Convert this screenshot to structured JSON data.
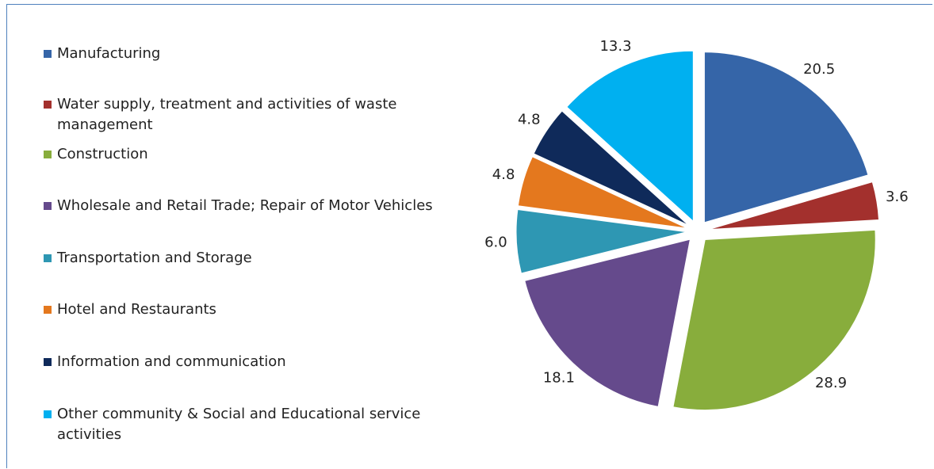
{
  "chart_data": {
    "type": "pie",
    "categories": [
      "Manufacturing",
      "Water supply, treatment and activities of waste management",
      "Construction",
      "Wholesale and Retail Trade; Repair of Motor Vehicles",
      "Transportation and Storage",
      "Hotel and Restaurants",
      "Information and communication",
      "Other community & Social and Educational service activities"
    ],
    "values": [
      20.5,
      3.6,
      28.9,
      18.1,
      6.0,
      4.8,
      4.8,
      13.3
    ],
    "value_labels": [
      "20.5",
      "3.6",
      "28.9",
      "18.1",
      "6.0",
      "4.8",
      "4.8",
      "13.3"
    ],
    "colors": [
      "#3565a8",
      "#a3302d",
      "#88ad3c",
      "#654a8c",
      "#2e97b3",
      "#e4781e",
      "#0f2a5a",
      "#00b0f0"
    ],
    "legend": "left"
  }
}
